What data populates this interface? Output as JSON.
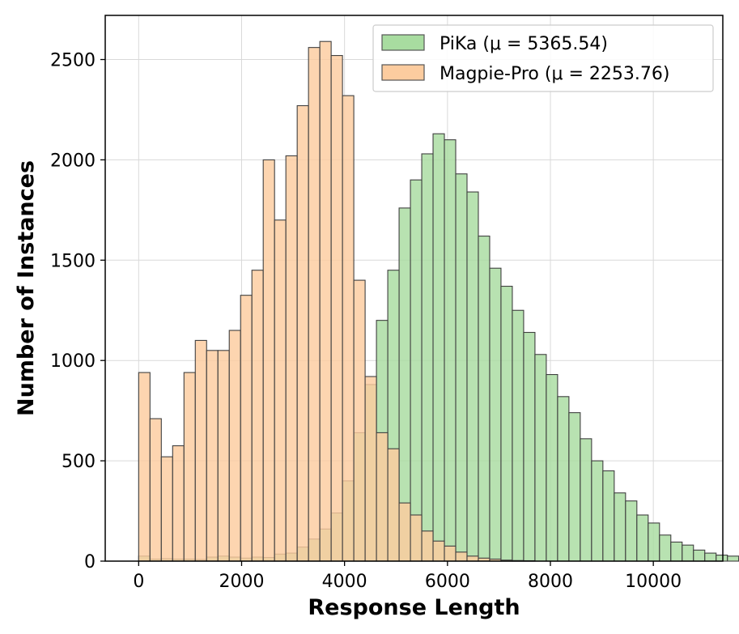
{
  "chart_data": {
    "type": "bar",
    "subtype": "overlapping-histogram",
    "title": "",
    "xlabel": "Response Length",
    "ylabel": "Number of Instances",
    "xlim": [
      -650,
      11350
    ],
    "ylim": [
      0,
      2720
    ],
    "xticks": [
      0,
      2000,
      4000,
      6000,
      8000,
      10000
    ],
    "yticks": [
      0,
      500,
      1000,
      1500,
      2000,
      2500
    ],
    "grid": true,
    "legend_position": "top-right",
    "series": [
      {
        "name": "PiKa (μ = 5365.54)",
        "color": "#a8dca0",
        "bin_start": 0,
        "bin_width": 220,
        "values": [
          25,
          10,
          12,
          10,
          10,
          8,
          20,
          25,
          20,
          15,
          20,
          18,
          35,
          40,
          70,
          110,
          160,
          240,
          400,
          640,
          880,
          1200,
          1450,
          1760,
          1900,
          2030,
          2130,
          2100,
          1930,
          1840,
          1620,
          1460,
          1370,
          1250,
          1140,
          1030,
          930,
          820,
          740,
          610,
          500,
          450,
          340,
          300,
          230,
          190,
          130,
          95,
          80,
          55,
          40,
          30,
          25,
          15,
          10,
          5,
          3,
          2,
          1,
          1
        ]
      },
      {
        "name": "Magpie-Pro (μ = 2253.76)",
        "color": "#fccc9f",
        "bin_start": 0,
        "bin_width": 220,
        "values": [
          940,
          710,
          520,
          575,
          940,
          1100,
          1050,
          1050,
          1150,
          1325,
          1450,
          2000,
          1700,
          2020,
          2270,
          2560,
          2590,
          2520,
          2320,
          1400,
          920,
          640,
          560,
          290,
          230,
          150,
          100,
          75,
          45,
          25,
          15,
          10,
          5,
          3,
          2
        ]
      }
    ]
  }
}
